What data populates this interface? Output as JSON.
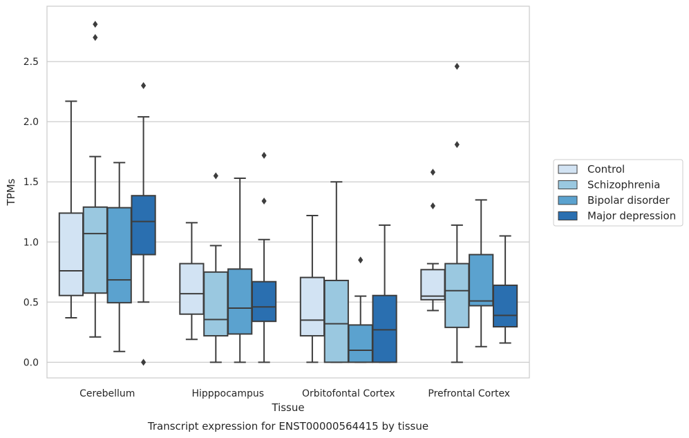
{
  "chart_data": {
    "type": "box",
    "caption": "Transcript expression for ENST00000564415 by tissue",
    "xlabel": "Tissue",
    "ylabel": "TPMs",
    "ylim": [
      -0.13,
      2.96
    ],
    "yticks": [
      0.0,
      0.5,
      1.0,
      1.5,
      2.0,
      2.5
    ],
    "ytick_labels": [
      "0.0",
      "0.5",
      "1.0",
      "1.5",
      "2.0",
      "2.5"
    ],
    "grid": "horizontal",
    "legend_position": "right",
    "categories": [
      "Cerebellum",
      "Hipppocampus",
      "Orbitofontal Cortex",
      "Prefrontal Cortex"
    ],
    "series": [
      {
        "name": "Control",
        "color": "#d2e3f3",
        "boxes": [
          {
            "whislo": 0.37,
            "q1": 0.555,
            "med": 0.76,
            "q3": 1.24,
            "whishi": 2.17,
            "fliers": []
          },
          {
            "whislo": 0.19,
            "q1": 0.4,
            "med": 0.57,
            "q3": 0.82,
            "whishi": 1.16,
            "fliers": []
          },
          {
            "whislo": 0.0,
            "q1": 0.22,
            "med": 0.35,
            "q3": 0.705,
            "whishi": 1.22,
            "fliers": []
          },
          {
            "whislo": 0.43,
            "q1": 0.52,
            "med": 0.55,
            "q3": 0.77,
            "whishi": 0.82,
            "fliers": [
              1.3,
              1.58
            ]
          }
        ]
      },
      {
        "name": "Schizophrenia",
        "color": "#9ac8e0",
        "boxes": [
          {
            "whislo": 0.21,
            "q1": 0.575,
            "med": 1.07,
            "q3": 1.29,
            "whishi": 1.71,
            "fliers": [
              2.7,
              2.81
            ]
          },
          {
            "whislo": 0.0,
            "q1": 0.22,
            "med": 0.355,
            "q3": 0.75,
            "whishi": 0.97,
            "fliers": [
              1.55
            ]
          },
          {
            "whislo": 0.0,
            "q1": 0.0,
            "med": 0.32,
            "q3": 0.68,
            "whishi": 1.5,
            "fliers": []
          },
          {
            "whislo": 0.0,
            "q1": 0.29,
            "med": 0.595,
            "q3": 0.82,
            "whishi": 1.14,
            "fliers": [
              1.81,
              2.46
            ]
          }
        ]
      },
      {
        "name": "Bipolar disorder",
        "color": "#5ba2cf",
        "boxes": [
          {
            "whislo": 0.09,
            "q1": 0.495,
            "med": 0.685,
            "q3": 1.285,
            "whishi": 1.66,
            "fliers": []
          },
          {
            "whislo": 0.0,
            "q1": 0.235,
            "med": 0.45,
            "q3": 0.775,
            "whishi": 1.53,
            "fliers": []
          },
          {
            "whislo": 0.0,
            "q1": 0.0,
            "med": 0.1,
            "q3": 0.31,
            "whishi": 0.55,
            "fliers": [
              0.85
            ]
          },
          {
            "whislo": 0.13,
            "q1": 0.47,
            "med": 0.51,
            "q3": 0.895,
            "whishi": 1.35,
            "fliers": []
          }
        ]
      },
      {
        "name": "Major depression",
        "color": "#2a6fb0",
        "boxes": [
          {
            "whislo": 0.5,
            "q1": 0.895,
            "med": 1.17,
            "q3": 1.385,
            "whishi": 2.04,
            "fliers": [
              2.3,
              0.0
            ]
          },
          {
            "whislo": 0.0,
            "q1": 0.34,
            "med": 0.46,
            "q3": 0.67,
            "whishi": 1.02,
            "fliers": [
              1.34,
              1.72
            ]
          },
          {
            "whislo": 0.0,
            "q1": 0.0,
            "med": 0.27,
            "q3": 0.555,
            "whishi": 1.14,
            "fliers": []
          },
          {
            "whislo": 0.16,
            "q1": 0.295,
            "med": 0.39,
            "q3": 0.64,
            "whishi": 1.05,
            "fliers": []
          }
        ]
      }
    ]
  }
}
